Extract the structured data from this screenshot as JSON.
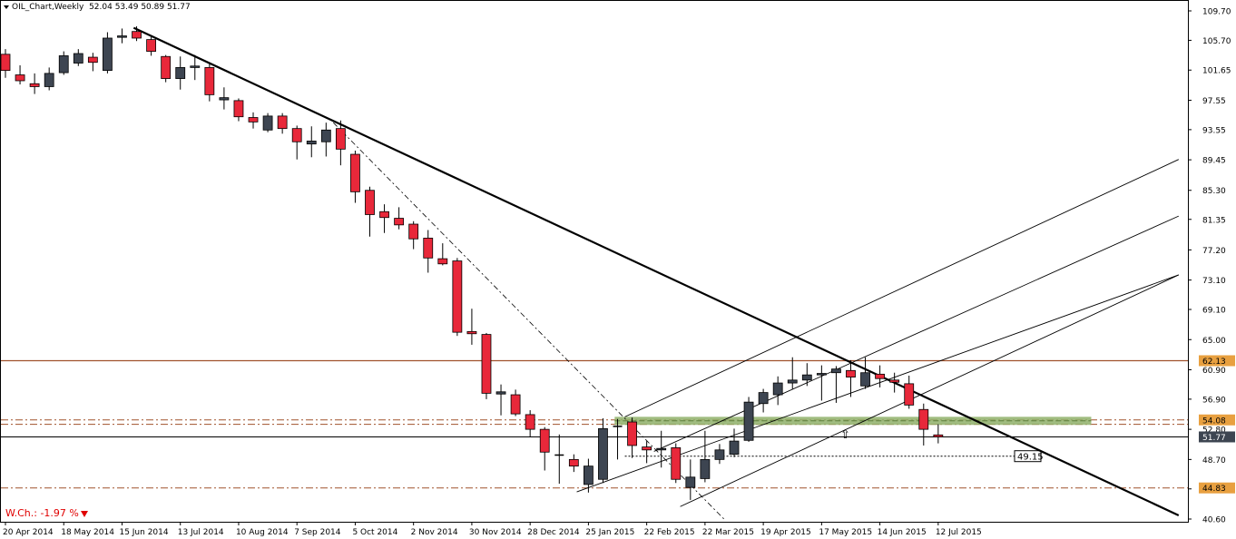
{
  "header": {
    "symbol_label": "OIL_Chart,Weekly",
    "ohlc_label": "52.04 53.49 50.89 51.77"
  },
  "footer": {
    "weekly_change_label": "W.Ch.: -1.97 %"
  },
  "colors": {
    "bull_body": "#3d4551",
    "bear_body": "#e8283a",
    "wick": "#000000",
    "resistance_line": "#a0522d",
    "support_line": "#a0522d",
    "green_zone": "#8fb06a",
    "price_line": "#000000",
    "axis_text": "#000000"
  },
  "chart_data": {
    "type": "candlestick",
    "y_axis": {
      "ylim": [
        40.1,
        110.6
      ],
      "tick_labels": [
        "109.70",
        "105.70",
        "101.65",
        "97.55",
        "93.55",
        "89.45",
        "85.30",
        "81.35",
        "77.20",
        "73.10",
        "69.10",
        "65.00",
        "60.90",
        "56.90",
        "52.80",
        "48.70",
        "44.70",
        "40.60"
      ],
      "tick_values": [
        109.7,
        105.7,
        101.65,
        97.55,
        93.55,
        89.45,
        85.3,
        81.35,
        77.2,
        73.1,
        69.1,
        65.0,
        60.9,
        56.9,
        52.8,
        48.7,
        44.7,
        40.6
      ]
    },
    "x_axis": {
      "tick_labels": [
        "20 Apr 2014",
        "18 May 2014",
        "15 Jun 2014",
        "13 Jul 2014",
        "10 Aug 2014",
        "7 Sep 2014",
        "5 Oct 2014",
        "2 Nov 2014",
        "30 Nov 2014",
        "28 Dec 2014",
        "25 Jan 2015",
        "22 Feb 2015",
        "22 Mar 2015",
        "19 Apr 2015",
        "17 May 2015",
        "14 Jun 2015",
        "12 Jul 2015"
      ],
      "tick_bar_index": [
        0,
        4,
        8,
        12,
        16,
        20,
        24,
        28,
        32,
        36,
        40,
        44,
        48,
        52,
        56,
        60,
        64
      ]
    },
    "candles": [
      {
        "o": 103.8,
        "h": 104.5,
        "l": 100.6,
        "c": 101.6
      },
      {
        "o": 101.0,
        "h": 102.3,
        "l": 99.7,
        "c": 100.2
      },
      {
        "o": 99.8,
        "h": 101.2,
        "l": 98.4,
        "c": 99.4
      },
      {
        "o": 99.4,
        "h": 102.0,
        "l": 98.9,
        "c": 101.2
      },
      {
        "o": 101.3,
        "h": 104.2,
        "l": 101.0,
        "c": 103.6
      },
      {
        "o": 102.6,
        "h": 104.5,
        "l": 102.2,
        "c": 103.9
      },
      {
        "o": 103.4,
        "h": 104.0,
        "l": 101.5,
        "c": 102.7
      },
      {
        "o": 101.6,
        "h": 106.8,
        "l": 101.2,
        "c": 106.0
      },
      {
        "o": 106.1,
        "h": 107.3,
        "l": 105.3,
        "c": 106.3
      },
      {
        "o": 106.9,
        "h": 107.6,
        "l": 105.6,
        "c": 106.0
      },
      {
        "o": 105.8,
        "h": 106.2,
        "l": 103.6,
        "c": 104.2
      },
      {
        "o": 103.5,
        "h": 103.7,
        "l": 100.0,
        "c": 100.5
      },
      {
        "o": 100.5,
        "h": 103.5,
        "l": 99.0,
        "c": 102.0
      },
      {
        "o": 102.0,
        "h": 103.7,
        "l": 100.3,
        "c": 102.2
      },
      {
        "o": 102.0,
        "h": 102.7,
        "l": 97.4,
        "c": 98.3
      },
      {
        "o": 97.6,
        "h": 99.3,
        "l": 96.3,
        "c": 97.9
      },
      {
        "o": 97.5,
        "h": 97.8,
        "l": 94.7,
        "c": 95.3
      },
      {
        "o": 95.2,
        "h": 95.9,
        "l": 93.7,
        "c": 94.6
      },
      {
        "o": 93.5,
        "h": 95.8,
        "l": 93.2,
        "c": 95.4
      },
      {
        "o": 95.4,
        "h": 95.8,
        "l": 93.0,
        "c": 93.7
      },
      {
        "o": 93.7,
        "h": 94.1,
        "l": 89.5,
        "c": 91.9
      },
      {
        "o": 91.6,
        "h": 94.0,
        "l": 89.8,
        "c": 92.0
      },
      {
        "o": 91.9,
        "h": 94.5,
        "l": 89.9,
        "c": 93.5
      },
      {
        "o": 93.7,
        "h": 94.8,
        "l": 88.7,
        "c": 90.9
      },
      {
        "o": 90.2,
        "h": 90.7,
        "l": 83.6,
        "c": 85.1
      },
      {
        "o": 85.3,
        "h": 85.8,
        "l": 79.0,
        "c": 82.0
      },
      {
        "o": 82.4,
        "h": 83.4,
        "l": 79.5,
        "c": 81.6
      },
      {
        "o": 81.5,
        "h": 83.0,
        "l": 80.0,
        "c": 80.6
      },
      {
        "o": 80.7,
        "h": 81.1,
        "l": 77.3,
        "c": 78.7
      },
      {
        "o": 78.8,
        "h": 79.9,
        "l": 74.1,
        "c": 76.1
      },
      {
        "o": 76.0,
        "h": 78.1,
        "l": 75.1,
        "c": 75.3
      },
      {
        "o": 75.7,
        "h": 76.1,
        "l": 65.5,
        "c": 66.0
      },
      {
        "o": 66.1,
        "h": 69.2,
        "l": 64.3,
        "c": 65.8
      },
      {
        "o": 65.7,
        "h": 65.9,
        "l": 56.9,
        "c": 57.7
      },
      {
        "o": 57.6,
        "h": 58.9,
        "l": 54.7,
        "c": 57.9
      },
      {
        "o": 57.5,
        "h": 58.2,
        "l": 54.6,
        "c": 54.9
      },
      {
        "o": 54.8,
        "h": 55.4,
        "l": 51.8,
        "c": 52.8
      },
      {
        "o": 52.8,
        "h": 53.1,
        "l": 47.2,
        "c": 49.7
      },
      {
        "o": 49.3,
        "h": 52.1,
        "l": 45.4,
        "c": 49.2
      },
      {
        "o": 48.7,
        "h": 49.4,
        "l": 47.0,
        "c": 47.8
      },
      {
        "o": 45.3,
        "h": 48.8,
        "l": 44.2,
        "c": 47.8
      },
      {
        "o": 46.0,
        "h": 54.3,
        "l": 45.5,
        "c": 52.9
      },
      {
        "o": 53.1,
        "h": 54.2,
        "l": 48.7,
        "c": 53.2
      },
      {
        "o": 53.8,
        "h": 54.4,
        "l": 48.9,
        "c": 50.6
      },
      {
        "o": 50.4,
        "h": 51.2,
        "l": 48.2,
        "c": 50.0
      },
      {
        "o": 50.0,
        "h": 52.6,
        "l": 47.6,
        "c": 50.2
      },
      {
        "o": 50.3,
        "h": 50.9,
        "l": 45.5,
        "c": 46.0
      },
      {
        "o": 44.9,
        "h": 48.7,
        "l": 43.2,
        "c": 46.3
      },
      {
        "o": 46.1,
        "h": 52.6,
        "l": 45.6,
        "c": 48.7
      },
      {
        "o": 48.7,
        "h": 50.8,
        "l": 48.1,
        "c": 50.0
      },
      {
        "o": 49.4,
        "h": 52.9,
        "l": 49.0,
        "c": 51.2
      },
      {
        "o": 51.3,
        "h": 57.2,
        "l": 51.1,
        "c": 56.5
      },
      {
        "o": 56.3,
        "h": 58.3,
        "l": 55.1,
        "c": 57.8
      },
      {
        "o": 57.5,
        "h": 60.0,
        "l": 56.1,
        "c": 59.1
      },
      {
        "o": 59.1,
        "h": 62.6,
        "l": 58.3,
        "c": 59.5
      },
      {
        "o": 59.5,
        "h": 61.8,
        "l": 58.7,
        "c": 60.2
      },
      {
        "o": 60.2,
        "h": 61.5,
        "l": 56.7,
        "c": 60.4
      },
      {
        "o": 60.5,
        "h": 61.4,
        "l": 56.4,
        "c": 61.0
      },
      {
        "o": 60.8,
        "h": 62.2,
        "l": 57.2,
        "c": 59.9
      },
      {
        "o": 58.7,
        "h": 62.6,
        "l": 58.3,
        "c": 60.5
      },
      {
        "o": 60.3,
        "h": 61.5,
        "l": 58.5,
        "c": 59.7
      },
      {
        "o": 59.5,
        "h": 60.5,
        "l": 57.8,
        "c": 59.2
      },
      {
        "o": 59.0,
        "h": 60.1,
        "l": 55.6,
        "c": 56.1
      },
      {
        "o": 55.5,
        "h": 56.3,
        "l": 50.6,
        "c": 52.8
      },
      {
        "o": 52.04,
        "h": 53.49,
        "l": 50.89,
        "c": 51.77
      }
    ],
    "horizontal_levels": [
      {
        "label": "62.13",
        "value": 62.13,
        "style": "solid",
        "color": "#a0522d"
      },
      {
        "label": "54.08",
        "value": 54.08,
        "style": "dashdot",
        "color": "#a0522d"
      },
      {
        "label": "53.48",
        "value": 53.48,
        "style": "dashdot",
        "color": "#a0522d"
      },
      {
        "label": "51.77",
        "value": 51.77,
        "style": "solid",
        "color": "#000000"
      },
      {
        "label": "44.83",
        "value": 44.83,
        "style": "dashdot",
        "color": "#a0522d"
      }
    ],
    "annotation_level": {
      "label": "49.15",
      "value": 49.15
    },
    "trendlines": [
      {
        "from": {
          "bar": 8.8,
          "price": 107.4
        },
        "to": {
          "bar": 80.5,
          "price": 41.1
        },
        "style": "thick"
      },
      {
        "from": {
          "bar": 22.5,
          "price": 94.5
        },
        "to": {
          "bar": 49.3,
          "price": 40.6
        },
        "style": "dashdot"
      },
      {
        "from": {
          "bar": 39.2,
          "price": 44.3
        },
        "to": {
          "bar": 80.5,
          "price": 73.8
        },
        "style": "thin"
      },
      {
        "from": {
          "bar": 42.5,
          "price": 54.5
        },
        "to": {
          "bar": 80.5,
          "price": 89.5
        },
        "style": "thin"
      },
      {
        "from": {
          "bar": 44.5,
          "price": 49.8
        },
        "to": {
          "bar": 80.5,
          "price": 81.8
        },
        "style": "thin"
      },
      {
        "from": {
          "bar": 46.3,
          "price": 42.3
        },
        "to": {
          "bar": 80.5,
          "price": 73.8
        },
        "style": "thin"
      }
    ],
    "zone": {
      "from_bar": 41.8,
      "to_bar": 74.5,
      "top": 54.5,
      "bottom": 53.4
    },
    "marker": {
      "bar": 57.6,
      "price": 52.2,
      "glyph": "⇧"
    }
  }
}
